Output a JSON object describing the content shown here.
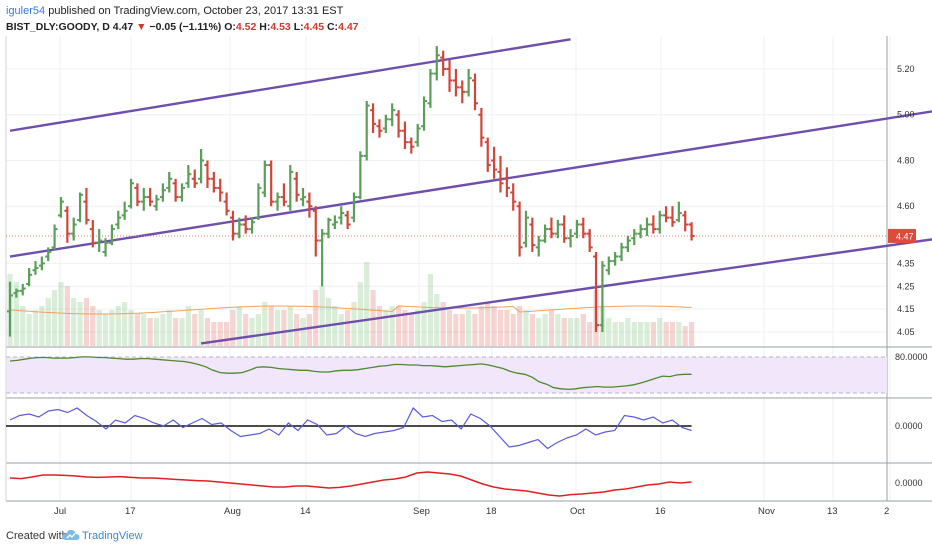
{
  "header": {
    "author": "iguler54",
    "published_text": "published on TradingView.com, October 23, 2017 13:31 EST",
    "symbol": "BIST_DLY:GOODY, D",
    "price": "4.47",
    "change": "−0.05 (−1.11%)",
    "o_label": "O:",
    "o": "4.52",
    "h_label": "H:",
    "h": "4.53",
    "l_label": "L:",
    "l": "4.45",
    "c_label": "C:",
    "c": "4.47"
  },
  "footer": {
    "created_with": "Created with",
    "brand": "TradingView"
  },
  "price_badge": "4.47",
  "colors": {
    "up": "#5a9e5a",
    "down": "#d0473a",
    "channel": "#6f4fae",
    "oscillator1": "#4c8a2f",
    "oscillator2": "#5b5bd6",
    "oscillator3": "#e02020",
    "band_fill": "#f1e6fa"
  },
  "chart_data": [
    {
      "type": "bar",
      "subtype": "ohlc",
      "price_ticks": [
        "5.20",
        "5.00",
        "4.80",
        "4.60",
        "4.47",
        "4.35",
        "4.25",
        "4.15",
        "4.05"
      ],
      "x_labels": [
        "Jul",
        "17",
        "Aug",
        "14",
        "Sep",
        "18",
        "Oct",
        "16",
        "Nov",
        "13",
        "2"
      ],
      "last_price": 4.47,
      "ohlc": [
        [
          4.14,
          4.27,
          4.03,
          4.21
        ],
        [
          4.22,
          4.24,
          4.2,
          4.23
        ],
        [
          4.23,
          4.26,
          4.21,
          4.24
        ],
        [
          4.26,
          4.33,
          4.25,
          4.3
        ],
        [
          4.32,
          4.36,
          4.3,
          4.33
        ],
        [
          4.34,
          4.38,
          4.32,
          4.35
        ],
        [
          4.38,
          4.42,
          4.36,
          4.4
        ],
        [
          4.42,
          4.52,
          4.41,
          4.5
        ],
        [
          4.56,
          4.64,
          4.55,
          4.62
        ],
        [
          4.58,
          4.6,
          4.44,
          4.48
        ],
        [
          4.48,
          4.55,
          4.45,
          4.52
        ],
        [
          4.54,
          4.66,
          4.53,
          4.65
        ],
        [
          4.62,
          4.68,
          4.52,
          4.54
        ],
        [
          4.5,
          4.54,
          4.42,
          4.44
        ],
        [
          4.44,
          4.5,
          4.4,
          4.45
        ],
        [
          4.4,
          4.46,
          4.38,
          4.44
        ],
        [
          4.44,
          4.52,
          4.43,
          4.5
        ],
        [
          4.52,
          4.58,
          4.5,
          4.55
        ],
        [
          4.56,
          4.62,
          4.54,
          4.58
        ],
        [
          4.6,
          4.72,
          4.59,
          4.7
        ],
        [
          4.68,
          4.7,
          4.6,
          4.62
        ],
        [
          4.62,
          4.68,
          4.58,
          4.64
        ],
        [
          4.64,
          4.68,
          4.6,
          4.62
        ],
        [
          4.6,
          4.65,
          4.58,
          4.63
        ],
        [
          4.64,
          4.7,
          4.62,
          4.67
        ],
        [
          4.68,
          4.75,
          4.66,
          4.72
        ],
        [
          4.7,
          4.72,
          4.62,
          4.64
        ],
        [
          4.64,
          4.7,
          4.62,
          4.68
        ],
        [
          4.7,
          4.78,
          4.68,
          4.74
        ],
        [
          4.72,
          4.76,
          4.68,
          4.7
        ],
        [
          4.72,
          4.85,
          4.7,
          4.8
        ],
        [
          4.78,
          4.8,
          4.68,
          4.72
        ],
        [
          4.72,
          4.75,
          4.66,
          4.68
        ],
        [
          4.68,
          4.72,
          4.62,
          4.66
        ],
        [
          4.62,
          4.66,
          4.56,
          4.58
        ],
        [
          4.55,
          4.58,
          4.45,
          4.48
        ],
        [
          4.48,
          4.55,
          4.46,
          4.52
        ],
        [
          4.52,
          4.56,
          4.48,
          4.5
        ],
        [
          4.5,
          4.55,
          4.48,
          4.53
        ],
        [
          4.55,
          4.7,
          4.54,
          4.68
        ],
        [
          4.66,
          4.8,
          4.64,
          4.78
        ],
        [
          4.78,
          4.8,
          4.6,
          4.62
        ],
        [
          4.62,
          4.66,
          4.58,
          4.64
        ],
        [
          4.64,
          4.7,
          4.6,
          4.62
        ],
        [
          4.6,
          4.78,
          4.58,
          4.75
        ],
        [
          4.72,
          4.75,
          4.62,
          4.65
        ],
        [
          4.63,
          4.68,
          4.6,
          4.64
        ],
        [
          4.62,
          4.66,
          4.55,
          4.6
        ],
        [
          4.58,
          4.6,
          4.38,
          4.45
        ],
        [
          4.45,
          4.5,
          4.25,
          4.48
        ],
        [
          4.48,
          4.55,
          4.46,
          4.54
        ],
        [
          4.52,
          4.56,
          4.5,
          4.53
        ],
        [
          4.55,
          4.6,
          4.52,
          4.57
        ],
        [
          4.56,
          4.58,
          4.5,
          4.52
        ],
        [
          4.55,
          4.66,
          4.53,
          4.64
        ],
        [
          4.64,
          4.84,
          4.63,
          4.82
        ],
        [
          4.82,
          5.06,
          4.8,
          5.04
        ],
        [
          5.02,
          5.05,
          4.92,
          4.96
        ],
        [
          4.95,
          4.98,
          4.9,
          4.93
        ],
        [
          4.94,
          5.0,
          4.92,
          4.98
        ],
        [
          4.98,
          5.05,
          4.95,
          5.02
        ],
        [
          5.0,
          5.02,
          4.9,
          4.93
        ],
        [
          4.93,
          4.97,
          4.85,
          4.88
        ],
        [
          4.88,
          4.9,
          4.83,
          4.86
        ],
        [
          4.88,
          4.96,
          4.86,
          4.94
        ],
        [
          4.95,
          5.08,
          4.93,
          5.06
        ],
        [
          5.05,
          5.2,
          5.03,
          5.18
        ],
        [
          5.18,
          5.3,
          5.15,
          5.26
        ],
        [
          5.25,
          5.28,
          5.17,
          5.2
        ],
        [
          5.2,
          5.24,
          5.1,
          5.15
        ],
        [
          5.15,
          5.2,
          5.08,
          5.12
        ],
        [
          5.12,
          5.15,
          5.05,
          5.1
        ],
        [
          5.1,
          5.2,
          5.08,
          5.16
        ],
        [
          5.15,
          5.18,
          5.02,
          5.05
        ],
        [
          5.0,
          5.03,
          4.86,
          4.9
        ],
        [
          4.88,
          4.9,
          4.75,
          4.78
        ],
        [
          4.8,
          4.86,
          4.72,
          4.76
        ],
        [
          4.75,
          4.82,
          4.66,
          4.7
        ],
        [
          4.72,
          4.77,
          4.64,
          4.68
        ],
        [
          4.66,
          4.7,
          4.58,
          4.62
        ],
        [
          4.6,
          4.62,
          4.38,
          4.42
        ],
        [
          4.44,
          4.58,
          4.42,
          4.55
        ],
        [
          4.52,
          4.55,
          4.4,
          4.43
        ],
        [
          4.42,
          4.47,
          4.38,
          4.45
        ],
        [
          4.45,
          4.52,
          4.44,
          4.5
        ],
        [
          4.5,
          4.55,
          4.46,
          4.48
        ],
        [
          4.48,
          4.54,
          4.46,
          4.52
        ],
        [
          4.52,
          4.56,
          4.44,
          4.46
        ],
        [
          4.46,
          4.5,
          4.42,
          4.47
        ],
        [
          4.48,
          4.54,
          4.46,
          4.52
        ],
        [
          4.52,
          4.55,
          4.46,
          4.48
        ],
        [
          4.48,
          4.5,
          4.4,
          4.42
        ],
        [
          4.38,
          4.4,
          4.05,
          4.08
        ],
        [
          4.08,
          4.36,
          4.05,
          4.34
        ],
        [
          4.32,
          4.38,
          4.3,
          4.36
        ],
        [
          4.36,
          4.4,
          4.34,
          4.38
        ],
        [
          4.38,
          4.44,
          4.36,
          4.42
        ],
        [
          4.42,
          4.47,
          4.4,
          4.45
        ],
        [
          4.46,
          4.5,
          4.43,
          4.48
        ],
        [
          4.48,
          4.52,
          4.46,
          4.5
        ],
        [
          4.5,
          4.55,
          4.47,
          4.52
        ],
        [
          4.52,
          4.56,
          4.48,
          4.5
        ],
        [
          4.5,
          4.58,
          4.48,
          4.56
        ],
        [
          4.56,
          4.6,
          4.53,
          4.55
        ],
        [
          4.55,
          4.6,
          4.51,
          4.53
        ],
        [
          4.54,
          4.62,
          4.53,
          4.57
        ],
        [
          4.56,
          4.58,
          4.49,
          4.52
        ],
        [
          4.52,
          4.53,
          4.45,
          4.47
        ]
      ],
      "channel_lines": [
        {
          "x1": 0,
          "y1": 4.93,
          "x2": 88,
          "y2": 5.33
        },
        {
          "x1": 0,
          "y1": 4.38,
          "x2": 146,
          "y2": 5.02
        },
        {
          "x1": 30,
          "y1": 4.0,
          "x2": 146,
          "y2": 4.46
        }
      ],
      "volume": [
        0.9,
        0.8,
        0.5,
        0.4,
        0.45,
        0.5,
        0.6,
        0.7,
        0.8,
        0.75,
        0.6,
        0.55,
        0.6,
        0.5,
        0.45,
        0.4,
        0.45,
        0.5,
        0.55,
        0.45,
        0.4,
        0.4,
        0.35,
        0.35,
        0.4,
        0.45,
        0.35,
        0.35,
        0.5,
        0.4,
        0.45,
        0.35,
        0.3,
        0.3,
        0.3,
        0.45,
        0.5,
        0.4,
        0.35,
        0.4,
        0.55,
        0.5,
        0.45,
        0.45,
        0.5,
        0.4,
        0.35,
        0.4,
        0.7,
        0.75,
        0.6,
        0.5,
        0.4,
        0.45,
        0.55,
        0.8,
        1.05,
        0.7,
        0.5,
        0.45,
        0.5,
        0.5,
        0.45,
        0.4,
        0.45,
        0.55,
        0.9,
        0.65,
        0.55,
        0.45,
        0.4,
        0.4,
        0.45,
        0.4,
        0.5,
        0.55,
        0.5,
        0.45,
        0.45,
        0.4,
        0.5,
        0.45,
        0.4,
        0.35,
        0.4,
        0.45,
        0.4,
        0.35,
        0.35,
        0.35,
        0.4,
        0.3,
        0.7,
        0.5,
        0.35,
        0.3,
        0.3,
        0.35,
        0.3,
        0.3,
        0.3,
        0.3,
        0.35,
        0.3,
        0.3,
        0.3,
        0.25,
        0.3
      ],
      "volume_ma": 0.45
    },
    {
      "type": "line",
      "value_label": "80.0000",
      "band": [
        20,
        80
      ],
      "values": [
        68,
        69,
        71,
        73,
        74,
        74,
        73,
        73,
        73,
        74,
        75,
        75,
        74,
        74,
        73,
        72,
        71,
        71,
        72,
        72,
        71,
        70,
        69,
        68,
        67,
        65,
        62,
        58,
        52,
        48,
        47,
        47,
        48,
        52,
        57,
        58,
        57,
        55,
        54,
        53,
        52,
        52,
        50,
        49,
        49,
        51,
        52,
        52,
        53,
        55,
        57,
        59,
        60,
        62,
        62,
        61,
        61,
        60,
        60,
        59,
        58,
        59,
        60,
        61,
        62,
        63,
        61,
        58,
        55,
        50,
        47,
        45,
        40,
        32,
        28,
        22,
        20,
        19,
        20,
        22,
        23,
        24,
        23,
        23,
        24,
        25,
        27,
        30,
        34,
        38,
        42,
        41,
        44,
        45,
        45
      ]
    },
    {
      "type": "line",
      "value_label": "0.0000",
      "zero_line": 0,
      "values": [
        0.2,
        0.35,
        0.4,
        0.3,
        0.5,
        0.55,
        0.45,
        0.6,
        0.35,
        0.15,
        -0.1,
        0.2,
        0.1,
        0.35,
        0.25,
        0.1,
        0.0,
        0.2,
        -0.05,
        0.1,
        0.25,
        0.05,
        0.1,
        -0.15,
        -0.35,
        -0.3,
        -0.25,
        -0.1,
        -0.3,
        0.1,
        -0.15,
        0.2,
        0.05,
        -0.3,
        -0.25,
        0.0,
        -0.25,
        -0.35,
        -0.25,
        -0.2,
        -0.15,
        -0.05,
        0.6,
        0.3,
        0.35,
        0.15,
        0.2,
        -0.1,
        0.4,
        0.25,
        0.0,
        -0.35,
        -0.7,
        -0.65,
        -0.55,
        -0.45,
        -0.75,
        -0.55,
        -0.4,
        -0.3,
        -0.1,
        -0.3,
        -0.2,
        -0.15,
        0.35,
        0.3,
        0.2,
        0.3,
        0.1,
        0.2,
        -0.05,
        -0.15
      ]
    },
    {
      "type": "line",
      "value_label": "0.0000",
      "values": [
        0.25,
        0.22,
        0.3,
        0.4,
        0.4,
        0.38,
        0.35,
        0.3,
        0.28,
        0.3,
        0.32,
        0.28,
        0.25,
        0.25,
        0.22,
        0.18,
        0.15,
        0.12,
        0.1,
        0.05,
        0.0,
        -0.05,
        -0.1,
        -0.15,
        -0.2,
        -0.2,
        -0.15,
        -0.15,
        -0.2,
        -0.25,
        -0.22,
        -0.15,
        -0.05,
        0.05,
        0.15,
        0.2,
        0.3,
        0.5,
        0.55,
        0.5,
        0.45,
        0.35,
        0.15,
        -0.05,
        -0.2,
        -0.3,
        -0.35,
        -0.4,
        -0.5,
        -0.6,
        -0.65,
        -0.58,
        -0.55,
        -0.5,
        -0.45,
        -0.35,
        -0.3,
        -0.2,
        -0.1,
        -0.05,
        0.05,
        0.0,
        0.05
      ]
    }
  ]
}
